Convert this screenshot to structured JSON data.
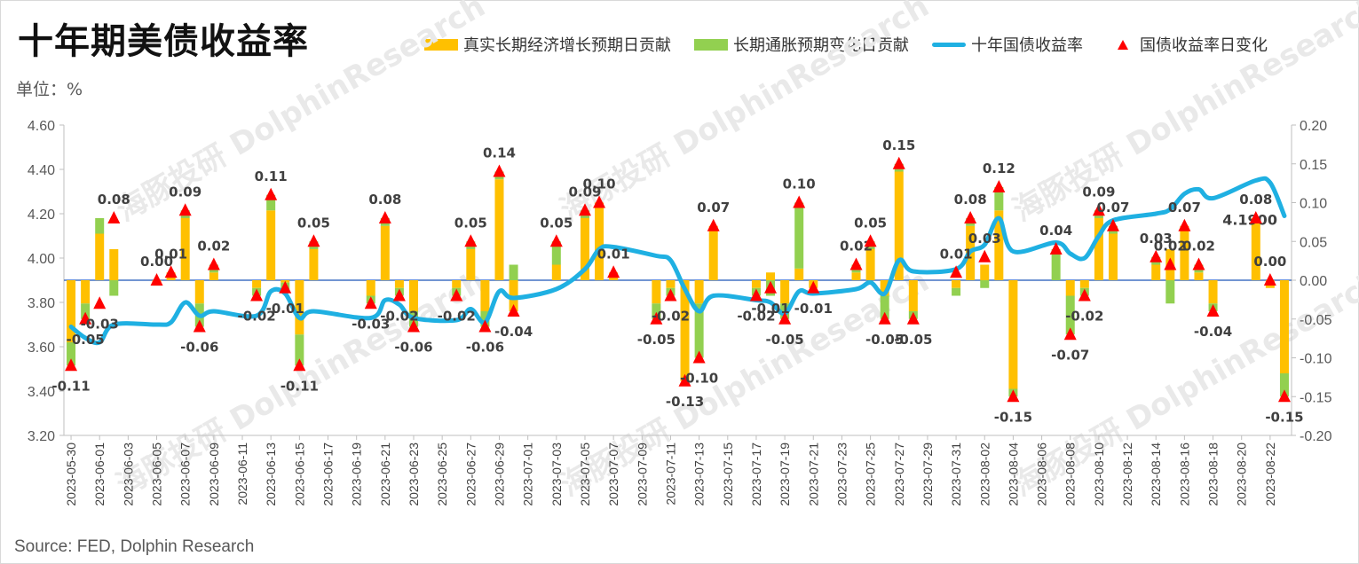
{
  "title": "十年期美债收益率",
  "unit_label": "单位：%",
  "source": "Source: FED, Dolphin Research",
  "watermark": "海豚投研 DolphinResearch",
  "colors": {
    "real": "#FFC000",
    "inflation": "#92D050",
    "yield_line": "#1FB0E2",
    "marker": "#FF0000",
    "baseline": "#4472C4"
  },
  "legend": {
    "real": "真实长期经济增长预期日贡献",
    "inflation": "长期通胀预期变化日贡献",
    "yield": "十年国债收益率",
    "change": "国债收益率日变化"
  },
  "chart_data": {
    "type": "bar+line",
    "dates": [
      "2023-05-30",
      "2023-05-31",
      "2023-06-01",
      "2023-06-02",
      "2023-06-05",
      "2023-06-06",
      "2023-06-07",
      "2023-06-08",
      "2023-06-09",
      "2023-06-12",
      "2023-06-13",
      "2023-06-14",
      "2023-06-15",
      "2023-06-16",
      "2023-06-20",
      "2023-06-21",
      "2023-06-22",
      "2023-06-23",
      "2023-06-26",
      "2023-06-27",
      "2023-06-28",
      "2023-06-29",
      "2023-06-30",
      "2023-07-03",
      "2023-07-05",
      "2023-07-06",
      "2023-07-07",
      "2023-07-10",
      "2023-07-11",
      "2023-07-12",
      "2023-07-13",
      "2023-07-14",
      "2023-07-17",
      "2023-07-18",
      "2023-07-19",
      "2023-07-20",
      "2023-07-21",
      "2023-07-24",
      "2023-07-25",
      "2023-07-26",
      "2023-07-27",
      "2023-07-28",
      "2023-07-31",
      "2023-08-01",
      "2023-08-02",
      "2023-08-03",
      "2023-08-04",
      "2023-08-07",
      "2023-08-08",
      "2023-08-09",
      "2023-08-10",
      "2023-08-11",
      "2023-08-14",
      "2023-08-15",
      "2023-08-16",
      "2023-08-17",
      "2023-08-18",
      "2023-08-21",
      "2023-08-22",
      "2023-08-23"
    ],
    "x_tick_labels": [
      "2023-05-30",
      "2023-06-01",
      "2023-06-03",
      "2023-06-05",
      "2023-06-07",
      "2023-06-09",
      "2023-06-11",
      "2023-06-13",
      "2023-06-15",
      "2023-06-17",
      "2023-06-19",
      "2023-06-21",
      "2023-06-23",
      "2023-06-25",
      "2023-06-27",
      "2023-06-29",
      "2023-07-01",
      "2023-07-03",
      "2023-07-05",
      "2023-07-07",
      "2023-07-09",
      "2023-07-11",
      "2023-07-13",
      "2023-07-15",
      "2023-07-17",
      "2023-07-19",
      "2023-07-21",
      "2023-07-23",
      "2023-07-25",
      "2023-07-27",
      "2023-07-29",
      "2023-07-31",
      "2023-08-02",
      "2023-08-04",
      "2023-08-06",
      "2023-08-08",
      "2023-08-10",
      "2023-08-12",
      "2023-08-14",
      "2023-08-16",
      "2023-08-18",
      "2023-08-20",
      "2023-08-22"
    ],
    "real_contribution": [
      -0.08,
      -0.03,
      0.06,
      0.04,
      -0.003,
      0.01,
      0.08,
      -0.03,
      0.01,
      -0.01,
      0.09,
      -0.003,
      -0.07,
      0.04,
      -0.02,
      0.07,
      -0.01,
      -0.04,
      -0.01,
      0.04,
      -0.04,
      0.13,
      -0.04,
      0.02,
      0.08,
      0.1,
      0.01,
      -0.03,
      -0.01,
      -0.13,
      -0.03,
      0.07,
      -0.01,
      0.01,
      -0.03,
      0.015,
      -0.01,
      0.01,
      0.04,
      -0.02,
      0.14,
      -0.04,
      -0.01,
      0.07,
      0.02,
      0.09,
      -0.14,
      0.0,
      -0.02,
      -0.01,
      0.08,
      0.06,
      0.02,
      0.04,
      0.07,
      0.01,
      -0.03,
      0.08,
      -0.01,
      -0.12
    ],
    "inflation_contribution": [
      -0.03,
      -0.02,
      0.02,
      -0.02,
      -0.004,
      0.0,
      0.01,
      -0.03,
      0.01,
      -0.01,
      0.02,
      -0.01,
      -0.04,
      0.01,
      -0.01,
      0.01,
      -0.01,
      -0.02,
      -0.01,
      0.01,
      -0.02,
      0.01,
      0.02,
      0.03,
      0.01,
      0.0,
      0.0,
      -0.02,
      -0.01,
      -0.0,
      -0.07,
      0.0,
      -0.01,
      -0.02,
      -0.02,
      0.085,
      0.0,
      0.01,
      0.01,
      -0.03,
      0.01,
      -0.01,
      -0.01,
      0.01,
      -0.01,
      0.03,
      -0.01,
      0.04,
      -0.05,
      -0.01,
      0.01,
      0.01,
      0.01,
      -0.03,
      0.0,
      0.01,
      -0.01,
      0.0,
      0.0,
      -0.03
    ],
    "yield_change_labels": [
      "-0.11",
      "-0.05",
      "-0.03",
      "0.08",
      "0.00",
      "0.01",
      "0.09",
      "-0.06",
      "0.02",
      "-0.02",
      "0.11",
      "-0.01",
      "-0.11",
      "0.05",
      "-0.03",
      "0.08",
      "-0.02",
      "-0.06",
      "-0.02",
      "0.05",
      "-0.06",
      "0.14",
      "-0.04",
      "0.05",
      "0.09",
      "0.10",
      "0.01",
      "-0.05",
      "-0.02",
      "-0.13",
      "-0.10",
      "0.07",
      "-0.02",
      "-0.01",
      "-0.05",
      "0.10",
      "-0.01",
      "0.02",
      "0.05",
      "-0.05",
      "0.15",
      "-0.05",
      "0.01",
      "0.08",
      "0.03",
      "0.12",
      "-0.15",
      "0.04",
      "-0.07",
      "-0.02",
      "0.09",
      "0.07",
      "0.03",
      "0.02",
      "0.07",
      "0.02",
      "-0.04",
      "0.08",
      "0.00",
      "-0.15"
    ],
    "yield": [
      3.69,
      3.64,
      3.62,
      3.7,
      3.7,
      3.71,
      3.8,
      3.74,
      3.76,
      3.74,
      3.85,
      3.84,
      3.73,
      3.76,
      3.73,
      3.81,
      3.79,
      3.73,
      3.72,
      3.77,
      3.71,
      3.85,
      3.82,
      3.86,
      3.95,
      4.04,
      4.05,
      4.01,
      3.99,
      3.86,
      3.76,
      3.83,
      3.81,
      3.8,
      3.75,
      3.85,
      3.84,
      3.86,
      3.89,
      3.84,
      3.99,
      3.94,
      3.95,
      4.03,
      4.06,
      4.18,
      4.03,
      4.07,
      4.02,
      4.0,
      4.1,
      4.17,
      4.2,
      4.22,
      4.29,
      4.31,
      4.27,
      4.35,
      4.34,
      4.19
    ],
    "last_value_label": "4.1900",
    "y_left": {
      "min": 3.2,
      "max": 4.6,
      "ticks": [
        "3.20",
        "3.40",
        "3.60",
        "3.80",
        "4.00",
        "4.20",
        "4.40",
        "4.60"
      ]
    },
    "y_right": {
      "min": -0.2,
      "max": 0.2,
      "ticks": [
        "-0.20",
        "-0.15",
        "-0.10",
        "-0.05",
        "0.00",
        "0.05",
        "0.10",
        "0.15",
        "0.20"
      ]
    }
  }
}
